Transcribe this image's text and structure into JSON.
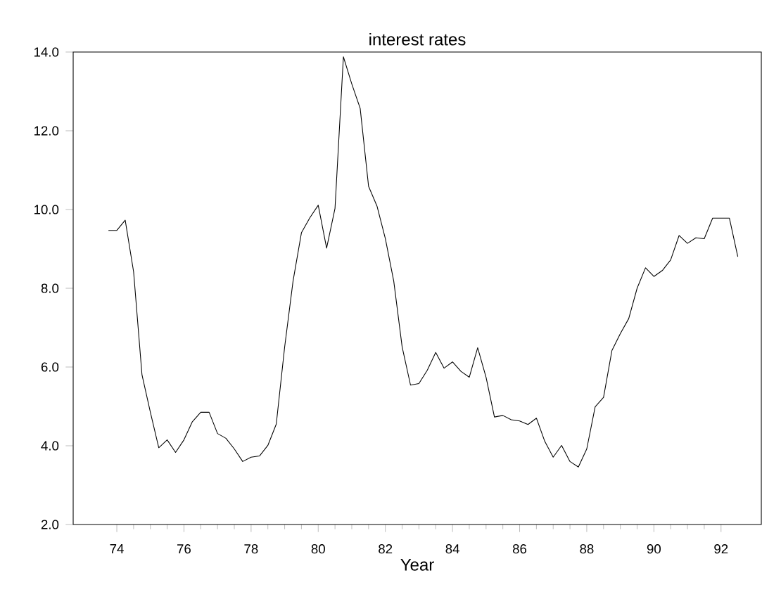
{
  "chart_data": {
    "type": "line",
    "title": "interest rates",
    "xlabel": "Year",
    "x": [
      73.75,
      74.0,
      74.25,
      74.5,
      74.75,
      75.0,
      75.25,
      75.5,
      75.75,
      76.0,
      76.25,
      76.5,
      76.75,
      77.0,
      77.25,
      77.5,
      77.75,
      78.0,
      78.25,
      78.5,
      78.75,
      79.0,
      79.25,
      79.5,
      79.75,
      80.0,
      80.25,
      80.5,
      80.75,
      81.0,
      81.25,
      81.5,
      81.75,
      82.0,
      82.25,
      82.5,
      82.75,
      83.0,
      83.25,
      83.5,
      83.75,
      84.0,
      84.25,
      84.5,
      84.75,
      85.0,
      85.25,
      85.5,
      85.75,
      86.0,
      86.25,
      86.5,
      86.75,
      87.0,
      87.25,
      87.5,
      87.75,
      88.0,
      88.25,
      88.5,
      88.75,
      89.0,
      89.25,
      89.5,
      89.75,
      90.0,
      90.25,
      90.5,
      90.75,
      91.0,
      91.25,
      91.5,
      91.75,
      92.0,
      92.25,
      92.5
    ],
    "series": [
      {
        "color": "#000000",
        "values": [
          9.47,
          9.47,
          9.73,
          8.42,
          5.8,
          4.85,
          3.95,
          4.15,
          3.83,
          4.15,
          4.61,
          4.85,
          4.85,
          4.31,
          4.19,
          3.92,
          3.6,
          3.71,
          3.74,
          4.01,
          4.55,
          6.51,
          8.18,
          9.41,
          9.79,
          10.11,
          9.02,
          10.03,
          13.88,
          13.19,
          12.57,
          10.59,
          10.09,
          9.26,
          8.18,
          6.51,
          5.54,
          5.58,
          5.92,
          6.37,
          5.97,
          6.13,
          5.89,
          5.74,
          6.49,
          5.74,
          4.73,
          4.77,
          4.66,
          4.63,
          4.54,
          4.7,
          4.11,
          3.71,
          4.01,
          3.6,
          3.46,
          3.92,
          4.99,
          5.23,
          6.42,
          6.85,
          7.23,
          8.0,
          8.52,
          8.3,
          8.45,
          8.72,
          9.34,
          9.14,
          9.28,
          9.26,
          9.78,
          9.78,
          9.78,
          8.8
        ]
      }
    ],
    "xlim": [
      72.7,
      93.2
    ],
    "xticks": [
      74,
      76,
      78,
      80,
      82,
      84,
      86,
      88,
      90,
      92
    ],
    "ylim": [
      2.0,
      14.0
    ],
    "yticks": [
      {
        "value": 2,
        "label": "2.0"
      },
      {
        "value": 4,
        "label": "4.0"
      },
      {
        "value": 6,
        "label": "6.0"
      },
      {
        "value": 8,
        "label": "8.0"
      },
      {
        "value": 10,
        "label": "10.0"
      },
      {
        "value": 12,
        "label": "12.0"
      },
      {
        "value": 14,
        "label": "14.0"
      }
    ],
    "marker": "none",
    "line_style": "solid"
  }
}
